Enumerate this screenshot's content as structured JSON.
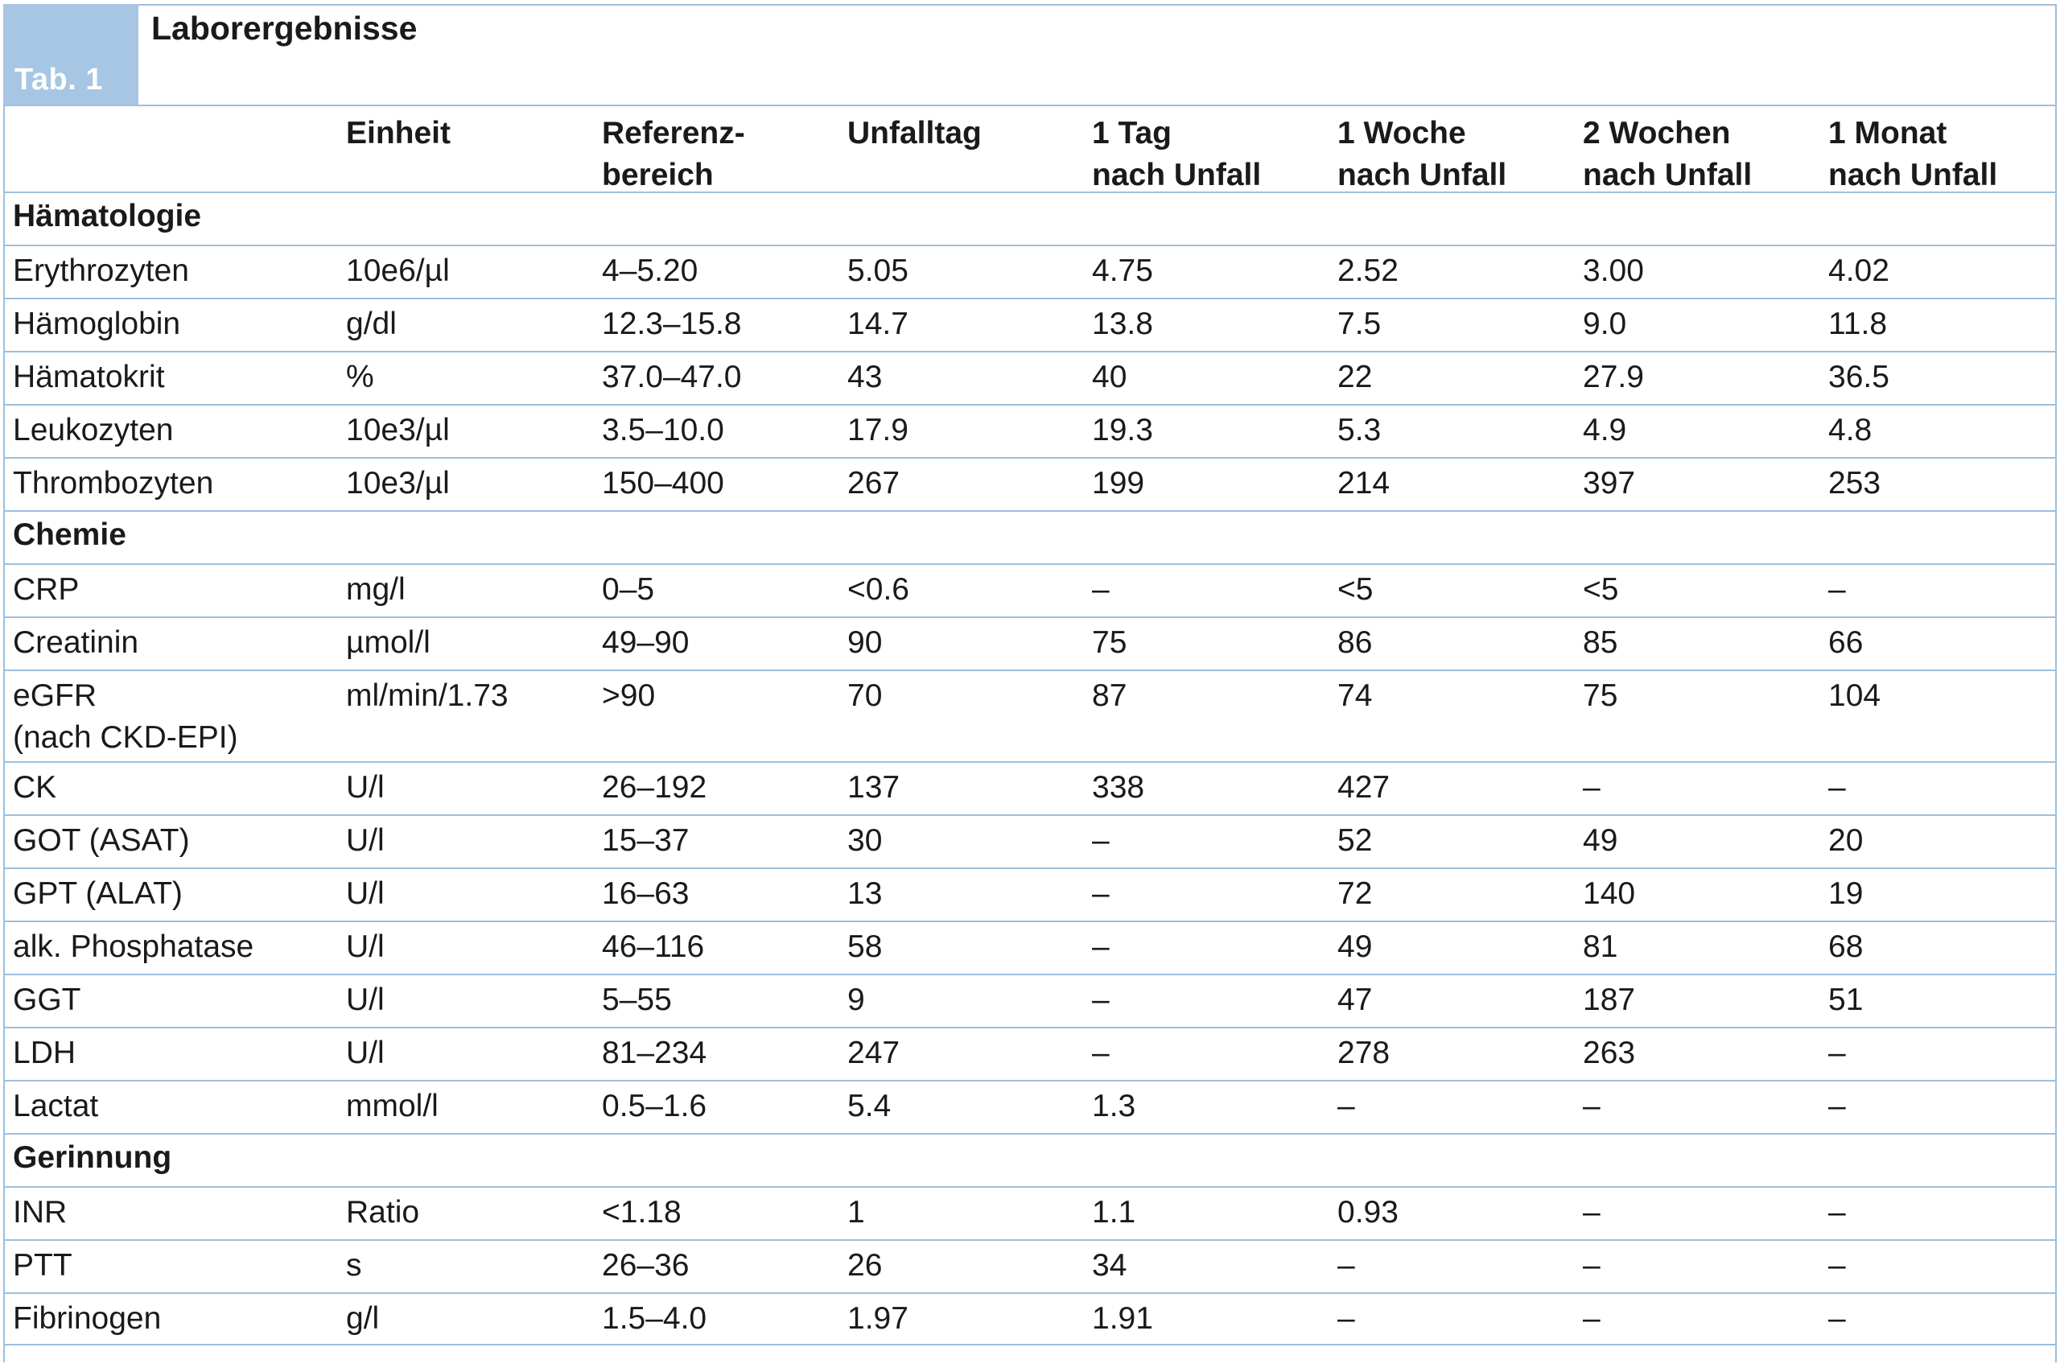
{
  "table": {
    "tab_label": "Tab. 1",
    "title": "Laborergebnisse",
    "header": [
      [
        "",
        ""
      ],
      [
        "Einheit",
        ""
      ],
      [
        "Referenz-",
        "bereich"
      ],
      [
        "Unfalltag",
        ""
      ],
      [
        "1 Tag",
        "nach Unfall"
      ],
      [
        "1 Woche",
        "nach Unfall"
      ],
      [
        "2 Wochen",
        "nach Unfall"
      ],
      [
        "1 Monat",
        "nach Unfall"
      ]
    ],
    "sections": [
      {
        "name": "Hämatologie",
        "rows": [
          [
            "Erythrozyten",
            "10e6/µl",
            "4–5.20",
            "5.05",
            "4.75",
            "2.52",
            "3.00",
            "4.02"
          ],
          [
            "Hämoglobin",
            "g/dl",
            "12.3–15.8",
            "14.7",
            "13.8",
            "7.5",
            "9.0",
            "11.8"
          ],
          [
            "Hämatokrit",
            "%",
            "37.0–47.0",
            "43",
            "40",
            "22",
            "27.9",
            "36.5"
          ],
          [
            "Leukozyten",
            "10e3/µl",
            "3.5–10.0",
            "17.9",
            "19.3",
            "5.3",
            "4.9",
            "4.8"
          ],
          [
            "Thrombozyten",
            "10e3/µl",
            "150–400",
            "267",
            "199",
            "214",
            "397",
            "253"
          ]
        ]
      },
      {
        "name": "Chemie",
        "rows": [
          [
            "CRP",
            "mg/l",
            "0–5",
            "<0.6",
            "–",
            "<5",
            "<5",
            "–"
          ],
          [
            "Creatinin",
            "µmol/l",
            "49–90",
            "90",
            "75",
            "86",
            "85",
            "66"
          ],
          [
            "eGFR\n(nach CKD-EPI)",
            "ml/min/1.73",
            ">90",
            "70",
            "87",
            "74",
            "75",
            "104"
          ],
          [
            "CK",
            "U/l",
            "26–192",
            "137",
            "338",
            "427",
            "–",
            "–"
          ],
          [
            "GOT (ASAT)",
            "U/l",
            "15–37",
            "30",
            "–",
            "52",
            "49",
            "20"
          ],
          [
            "GPT (ALAT)",
            "U/l",
            "16–63",
            "13",
            "–",
            "72",
            "140",
            "19"
          ],
          [
            "alk. Phosphatase",
            "U/l",
            "46–116",
            "58",
            "–",
            "49",
            "81",
            "68"
          ],
          [
            "GGT",
            "U/l",
            "5–55",
            "9",
            "–",
            "47",
            "187",
            "51"
          ],
          [
            "LDH",
            "U/l",
            "81–234",
            "247",
            "–",
            "278",
            "263",
            "–"
          ],
          [
            "Lactat",
            "mmol/l",
            "0.5–1.6",
            "5.4",
            "1.3",
            "–",
            "–",
            "–"
          ]
        ]
      },
      {
        "name": "Gerinnung",
        "rows": [
          [
            "INR",
            "Ratio",
            "<1.18",
            "1",
            "1.1",
            "0.93",
            "–",
            "–"
          ],
          [
            "PTT",
            "s",
            "26–36",
            "26",
            "34",
            "–",
            "–",
            "–"
          ],
          [
            "Fibrinogen",
            "g/l",
            "1.5–4.0",
            "1.97",
            "1.91",
            "–",
            "–",
            "–"
          ]
        ]
      }
    ]
  }
}
